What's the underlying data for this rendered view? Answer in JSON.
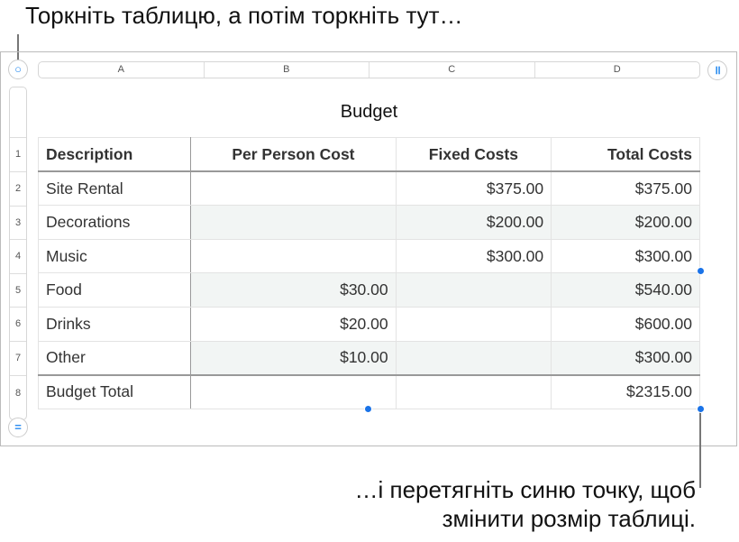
{
  "callouts": {
    "top": "Торкніть таблицю, а потім торкніть тут…",
    "bottom_line1": "…і перетягніть синю точку, щоб",
    "bottom_line2": "змінити розмір таблиці."
  },
  "columns": [
    "A",
    "B",
    "C",
    "D"
  ],
  "rows": [
    "1",
    "2",
    "3",
    "4",
    "5",
    "6",
    "7",
    "8"
  ],
  "table": {
    "title": "Budget",
    "headers": [
      "Description",
      "Per Person Cost",
      "Fixed Costs",
      "Total Costs"
    ],
    "body": [
      [
        "Site Rental",
        "",
        "$375.00",
        "$375.00"
      ],
      [
        "Decorations",
        "",
        "$200.00",
        "$200.00"
      ],
      [
        "Music",
        "",
        "$300.00",
        "$300.00"
      ],
      [
        "Food",
        "$30.00",
        "",
        "$540.00"
      ],
      [
        "Drinks",
        "$20.00",
        "",
        "$600.00"
      ],
      [
        "Other",
        "$10.00",
        "",
        "$300.00"
      ]
    ],
    "footer": [
      "Budget Total",
      "",
      "",
      "$2315.00"
    ]
  },
  "icons": {
    "select_table": "circle-icon",
    "column_handle": "pause-bars-icon",
    "row_handle": "equals-icon"
  },
  "colors": {
    "accent": "#1a73e8"
  }
}
